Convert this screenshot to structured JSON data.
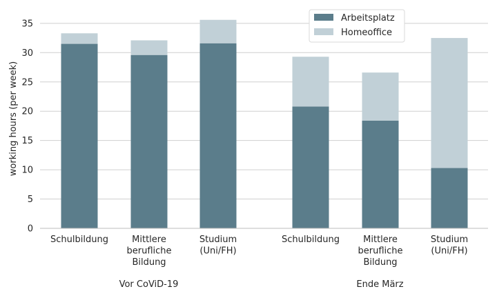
{
  "chart_data": {
    "type": "bar",
    "stacked": true,
    "title": "",
    "ylabel": "working hours (per week)",
    "xlabel": "",
    "ylim": [
      0,
      37
    ],
    "yticks": [
      0,
      5,
      10,
      15,
      20,
      25,
      30,
      35
    ],
    "grid": "horizontal",
    "legend_position": "top-right",
    "categories": [
      [
        "Schulbildung"
      ],
      [
        "Mittlere",
        "berufliche",
        "Bildung"
      ],
      [
        "Studium",
        "(Uni/FH)"
      ],
      [
        "Schulbildung"
      ],
      [
        "Mittlere",
        "berufliche",
        "Bildung"
      ],
      [
        "Studium",
        "(Uni/FH)"
      ]
    ],
    "groups": [
      {
        "label": "Vor CoViD-19",
        "categories": [
          0,
          1,
          2
        ]
      },
      {
        "label": "Ende März",
        "categories": [
          3,
          4,
          5
        ]
      }
    ],
    "series": [
      {
        "name": "Arbeitsplatz",
        "color": "#5b7d8b",
        "values": [
          31.5,
          29.6,
          31.6,
          20.8,
          18.4,
          10.3
        ]
      },
      {
        "name": "Homeoffice",
        "color": "#c1d0d7",
        "values": [
          1.8,
          2.5,
          4.0,
          8.5,
          8.2,
          22.2
        ]
      }
    ]
  }
}
